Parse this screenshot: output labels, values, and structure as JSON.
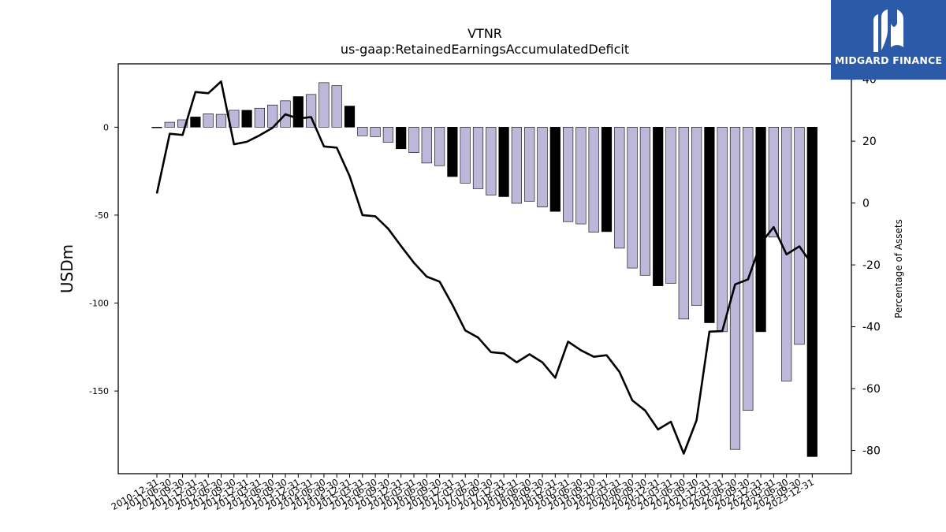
{
  "chart_data": {
    "type": "bar",
    "title": "VTNR",
    "subtitle": "us-gaap:RetainedEarningsAccumulatedDeficit",
    "ylabel": "USDm",
    "y2label": "Percentage of Assets",
    "ylim": [
      -197,
      36
    ],
    "y2lim": [
      -87.5,
      45
    ],
    "yticks": [
      0,
      -50,
      -100,
      -150
    ],
    "y2ticks": [
      40,
      20,
      0,
      -20,
      -40,
      -60,
      -80
    ],
    "categories": [
      "2010-12-31",
      "2011-06-30",
      "2011-09-30",
      "2011-12-31",
      "2012-03-31",
      "2012-06-30",
      "2012-09-30",
      "2012-12-31",
      "2013-03-31",
      "2013-06-30",
      "2013-09-30",
      "2013-12-31",
      "2014-03-31",
      "2014-06-30",
      "2014-09-30",
      "2014-12-31",
      "2015-03-31",
      "2015-06-30",
      "2015-09-30",
      "2015-12-31",
      "2016-03-31",
      "2016-06-30",
      "2016-09-30",
      "2016-12-31",
      "2017-03-31",
      "2017-06-30",
      "2017-09-30",
      "2017-12-31",
      "2018-03-31",
      "2018-06-30",
      "2018-09-30",
      "2018-12-31",
      "2019-03-31",
      "2019-06-30",
      "2019-09-30",
      "2019-12-31",
      "2020-03-31",
      "2020-06-30",
      "2020-09-30",
      "2020-12-31",
      "2021-03-31",
      "2021-06-30",
      "2021-09-30",
      "2021-12-31",
      "2022-03-31",
      "2022-06-30",
      "2022-09-30",
      "2022-12-31",
      "2023-03-31",
      "2023-06-30",
      "2023-09-30",
      "2023-12-31"
    ],
    "values": [
      0.0,
      2.8,
      4.2,
      5.8,
      7.6,
      7.3,
      9.6,
      9.6,
      10.8,
      12.6,
      15.0,
      17.4,
      18.6,
      25.3,
      23.6,
      12.0,
      -4.9,
      -5.4,
      -8.6,
      -12.3,
      -14.5,
      -20.4,
      -21.9,
      -28.1,
      -31.8,
      -35.0,
      -38.6,
      -39.5,
      -43.3,
      -42.1,
      -45.4,
      -47.9,
      -53.7,
      -55.0,
      -59.7,
      -59.4,
      -68.8,
      -80.1,
      -84.2,
      -90.2,
      -88.8,
      -109.1,
      -101.3,
      -111.2,
      -116.3,
      -183.2,
      -161.0,
      -116.3,
      -62.5,
      -144.3,
      -123.5,
      -187.3
    ],
    "year_end": [
      true,
      false,
      false,
      true,
      false,
      false,
      false,
      true,
      false,
      false,
      false,
      true,
      false,
      false,
      false,
      true,
      false,
      false,
      false,
      true,
      false,
      false,
      false,
      true,
      false,
      false,
      false,
      true,
      false,
      false,
      false,
      true,
      false,
      false,
      false,
      true,
      false,
      false,
      false,
      true,
      false,
      false,
      false,
      true,
      false,
      false,
      false,
      true,
      false,
      false,
      false,
      true
    ],
    "series": [
      {
        "name": "Percentage of Assets",
        "type": "line",
        "axis": "y2",
        "values": [
          3.1,
          22.4,
          22.0,
          35.9,
          35.5,
          39.3,
          19.0,
          19.8,
          21.9,
          24.3,
          28.7,
          27.3,
          27.8,
          18.3,
          17.9,
          8.7,
          -3.9,
          -4.3,
          -8.3,
          -13.9,
          -19.3,
          -23.8,
          -25.4,
          -32.9,
          -41.2,
          -43.5,
          -48.2,
          -48.6,
          -51.5,
          -48.9,
          -51.5,
          -56.5,
          -44.8,
          -47.6,
          -49.7,
          -49.2,
          -54.6,
          -63.8,
          -67.1,
          -73.2,
          -70.7,
          -81.0,
          -70.2,
          -41.6,
          -41.4,
          -26.3,
          -24.7,
          -13.0,
          -7.8,
          -16.6,
          -14.0,
          -19.9
        ]
      }
    ],
    "colors": {
      "bar_quarter": "#bcb8da",
      "bar_year_end": "#000000",
      "line": "#000000"
    },
    "grid": false,
    "legend": "none"
  },
  "logo": {
    "text": "MIDGARD FINANCE"
  }
}
